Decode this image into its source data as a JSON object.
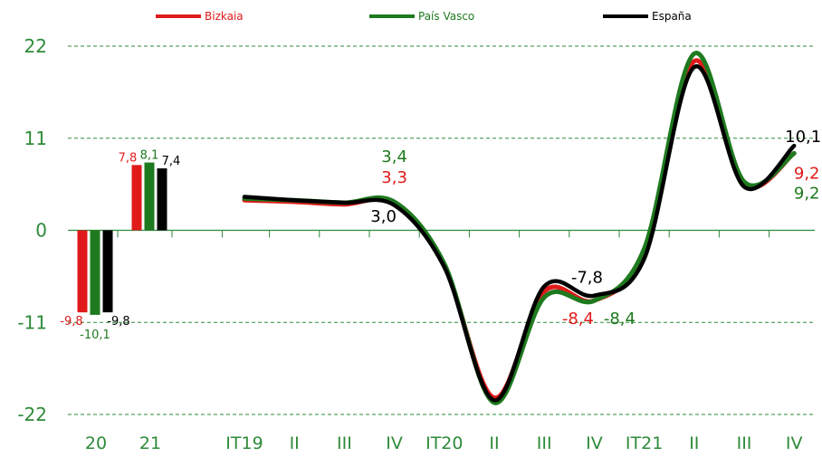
{
  "chart_data": {
    "type": "bar+line",
    "colors": {
      "Bizkaia": "#e01a1a",
      "País Vasco": "#1e7a1e",
      "España": "#000000",
      "axis_text": "#2e8b3a",
      "grid": "#2e8b3a"
    },
    "legend": [
      "Bizkaia",
      "País Vasco",
      "España"
    ],
    "legend_position": "top",
    "y_ticks": [
      "22",
      "11",
      "0",
      "-11",
      "-22"
    ],
    "ylim": [
      -22,
      22
    ],
    "grid": true,
    "annual": {
      "categories": [
        "20",
        "21"
      ],
      "series": [
        {
          "name": "Bizkaia",
          "values": [
            -9.8,
            7.8
          ],
          "labels": [
            "-9,8",
            "7,8"
          ]
        },
        {
          "name": "País Vasco",
          "values": [
            -10.1,
            8.1
          ],
          "labels": [
            "-10,1",
            "8,1"
          ]
        },
        {
          "name": "España",
          "values": [
            -9.8,
            7.4
          ],
          "labels": [
            "-9,8",
            "7,4"
          ]
        }
      ]
    },
    "quarterly": {
      "categories": [
        "IT19",
        "II",
        "III",
        "IV",
        "IT20",
        "II",
        "III",
        "IV",
        "IT21",
        "II",
        "III",
        "IV"
      ],
      "series": [
        {
          "name": "Bizkaia",
          "values": [
            3.6,
            3.4,
            3.1,
            3.3,
            -4.2,
            -20.0,
            -7.3,
            -8.4,
            -2.5,
            20.2,
            5.5,
            9.2
          ]
        },
        {
          "name": "País Vasco",
          "values": [
            3.8,
            3.6,
            3.3,
            3.4,
            -4.0,
            -20.6,
            -8.0,
            -8.4,
            -2.2,
            21.1,
            5.8,
            9.2
          ]
        },
        {
          "name": "España",
          "values": [
            4.0,
            3.6,
            3.3,
            3.0,
            -4.4,
            -20.3,
            -6.7,
            -7.8,
            -3.4,
            19.5,
            5.2,
            10.1
          ]
        }
      ],
      "point_labels": [
        {
          "series": "País Vasco",
          "index": 3,
          "text": "3,4"
        },
        {
          "series": "Bizkaia",
          "index": 3,
          "text": "3,3"
        },
        {
          "series": "España",
          "index": 3,
          "text": "3,0"
        },
        {
          "series": "España",
          "index": 7,
          "text": "-7,8"
        },
        {
          "series": "Bizkaia",
          "index": 7,
          "text": "-8,4"
        },
        {
          "series": "País Vasco",
          "index": 7,
          "text": "-8,4"
        },
        {
          "series": "España",
          "index": 11,
          "text": "10,1"
        },
        {
          "series": "Bizkaia",
          "index": 11,
          "text": "9,2"
        },
        {
          "series": "País Vasco",
          "index": 11,
          "text": "9,2"
        }
      ]
    }
  }
}
